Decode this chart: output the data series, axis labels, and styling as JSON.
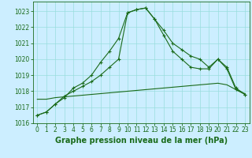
{
  "title": "Graphe pression niveau de la mer (hPa)",
  "hours": [
    0,
    1,
    2,
    3,
    4,
    5,
    6,
    7,
    8,
    9,
    10,
    11,
    12,
    13,
    14,
    15,
    16,
    17,
    18,
    19,
    20,
    21,
    22,
    23
  ],
  "series1": [
    1016.5,
    1016.7,
    1017.2,
    1017.6,
    1018.2,
    1018.5,
    1019.0,
    1019.8,
    1020.5,
    1021.3,
    1022.9,
    1023.1,
    1023.2,
    1022.5,
    1021.8,
    1021.0,
    1020.6,
    1020.2,
    1020.0,
    1019.5,
    1020.0,
    1019.5,
    1018.2,
    1017.8
  ],
  "series2": [
    1016.5,
    1016.7,
    1017.2,
    1017.7,
    1018.0,
    1018.3,
    1018.6,
    1019.0,
    1019.5,
    1020.0,
    1022.9,
    1023.1,
    1023.2,
    1022.5,
    1021.5,
    1020.5,
    1020.0,
    1019.5,
    1019.4,
    1019.4,
    1020.0,
    1019.4,
    1018.1,
    1017.8
  ],
  "series3": [
    1017.5,
    1017.5,
    1017.6,
    1017.65,
    1017.7,
    1017.75,
    1017.8,
    1017.85,
    1017.9,
    1017.95,
    1018.0,
    1018.05,
    1018.1,
    1018.15,
    1018.2,
    1018.25,
    1018.3,
    1018.35,
    1018.4,
    1018.45,
    1018.5,
    1018.4,
    1018.1,
    1017.85
  ],
  "ylim": [
    1016.0,
    1023.6
  ],
  "yticks": [
    1016,
    1017,
    1018,
    1019,
    1020,
    1021,
    1022,
    1023
  ],
  "xticks": [
    0,
    1,
    2,
    3,
    4,
    5,
    6,
    7,
    8,
    9,
    10,
    11,
    12,
    13,
    14,
    15,
    16,
    17,
    18,
    19,
    20,
    21,
    22,
    23
  ],
  "line_color": "#1a6b1a",
  "bg_color": "#cceeff",
  "grid_color": "#99dddd",
  "title_color": "#1a6b1a",
  "title_fontsize": 7.0,
  "tick_fontsize": 5.5
}
